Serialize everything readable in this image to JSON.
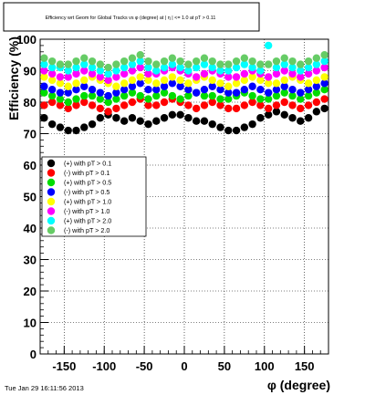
{
  "footer": {
    "timestamp": "Tue Jan 29 16:11:56 2013"
  },
  "chart_data": {
    "type": "scatter",
    "title": "Efficiency wrt Geom for Global Tracks vs φ (degree) at | η | <= 1.0 at pT > 0.11",
    "xlabel": "φ (degree)",
    "ylabel": "Efficiency (%)",
    "xlim": [
      -180,
      180
    ],
    "ylim": [
      0,
      100
    ],
    "xticks": [
      -150,
      -100,
      -50,
      0,
      50,
      100,
      150
    ],
    "yticks": [
      0,
      10,
      20,
      30,
      40,
      50,
      60,
      70,
      80,
      90,
      100
    ],
    "grid": true,
    "legend_position": "middle-left",
    "x": [
      -175,
      -165,
      -155,
      -145,
      -135,
      -125,
      -115,
      -105,
      -95,
      -85,
      -75,
      -65,
      -55,
      -45,
      -35,
      -25,
      -15,
      -5,
      5,
      15,
      25,
      35,
      45,
      55,
      65,
      75,
      85,
      95,
      105,
      115,
      125,
      135,
      145,
      155,
      165,
      175
    ],
    "series": [
      {
        "name": "(+) with pT > 0.1",
        "color": "#000000",
        "values": [
          75,
          73,
          72,
          71,
          71,
          72,
          73,
          75,
          76,
          75,
          74,
          75,
          74,
          73,
          74,
          75,
          76,
          76,
          75,
          74,
          74,
          73,
          72,
          71,
          71,
          72,
          73,
          75,
          76,
          77,
          76,
          75,
          74,
          75,
          77,
          78
        ]
      },
      {
        "name": "(-) with pT > 0.1",
        "color": "#ff0000",
        "values": [
          79,
          80,
          79,
          78,
          79,
          80,
          79,
          78,
          77,
          78,
          79,
          80,
          81,
          79,
          79,
          80,
          81,
          80,
          79,
          78,
          79,
          80,
          79,
          78,
          78,
          79,
          80,
          79,
          78,
          79,
          80,
          79,
          78,
          79,
          80,
          81
        ]
      },
      {
        "name": "(+) with pT > 0.5",
        "color": "#00dd00",
        "values": [
          83,
          82,
          81,
          80,
          81,
          82,
          82,
          81,
          80,
          81,
          82,
          83,
          82,
          81,
          82,
          83,
          82,
          81,
          82,
          83,
          82,
          82,
          81,
          81,
          82,
          83,
          82,
          81,
          81,
          82,
          83,
          82,
          81,
          82,
          83,
          84
        ]
      },
      {
        "name": "(-) with pT > 0.5",
        "color": "#0000ff",
        "values": [
          85,
          84,
          83,
          83,
          84,
          85,
          84,
          83,
          82,
          83,
          84,
          85,
          86,
          84,
          84,
          85,
          86,
          85,
          84,
          83,
          84,
          85,
          84,
          83,
          83,
          84,
          85,
          84,
          83,
          84,
          85,
          84,
          83,
          84,
          85,
          86
        ]
      },
      {
        "name": "(+) with pT > 1.0",
        "color": "#ffff00",
        "values": [
          88,
          87,
          86,
          85,
          86,
          87,
          88,
          87,
          86,
          85,
          86,
          87,
          88,
          87,
          86,
          87,
          88,
          87,
          86,
          87,
          88,
          87,
          86,
          85,
          86,
          87,
          88,
          87,
          86,
          86,
          87,
          88,
          87,
          86,
          87,
          88
        ]
      },
      {
        "name": "(-) with pT > 1.0",
        "color": "#ff00ff",
        "values": [
          90,
          89,
          88,
          88,
          89,
          90,
          89,
          88,
          87,
          88,
          89,
          90,
          91,
          89,
          89,
          90,
          91,
          90,
          89,
          88,
          89,
          90,
          89,
          88,
          88,
          89,
          90,
          89,
          88,
          89,
          90,
          89,
          88,
          89,
          90,
          91
        ]
      },
      {
        "name": "(+) with pT > 2.0",
        "color": "#00ffff",
        "values": [
          92,
          91,
          91,
          90,
          91,
          92,
          91,
          90,
          89,
          90,
          91,
          92,
          93,
          91,
          90,
          91,
          92,
          91,
          90,
          91,
          92,
          91,
          90,
          90,
          91,
          92,
          91,
          90,
          98,
          91,
          92,
          91,
          90,
          91,
          92,
          93
        ]
      },
      {
        "name": "(-) with pT > 2.0",
        "color": "#66cc66",
        "values": [
          94,
          93,
          92,
          92,
          93,
          94,
          93,
          92,
          91,
          92,
          93,
          94,
          95,
          93,
          92,
          93,
          94,
          93,
          92,
          93,
          94,
          93,
          92,
          92,
          93,
          94,
          93,
          92,
          92,
          93,
          94,
          93,
          92,
          93,
          94,
          95
        ]
      }
    ]
  }
}
